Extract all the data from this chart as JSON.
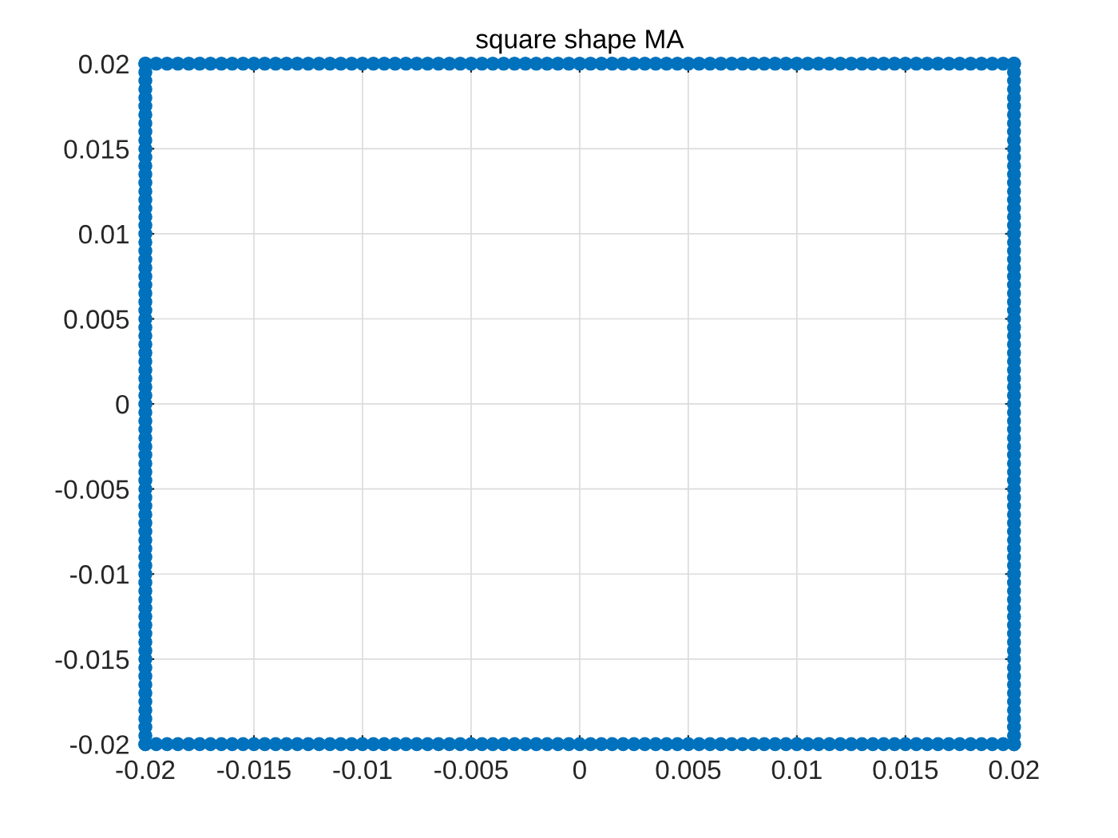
{
  "chart_data": {
    "type": "scatter",
    "title": "square shape MA",
    "marker": "circle",
    "grid": true,
    "xlim": [
      -0.02,
      0.02
    ],
    "ylim": [
      -0.02,
      0.02
    ],
    "xticks": [
      -0.02,
      -0.015,
      -0.01,
      -0.005,
      0,
      0.005,
      0.01,
      0.015,
      0.02
    ],
    "yticks": [
      -0.02,
      -0.015,
      -0.01,
      -0.005,
      0,
      0.005,
      0.01,
      0.015,
      0.02
    ],
    "series": [
      {
        "color": "#0072bd",
        "x": [
          -0.02,
          -0.0195,
          -0.019,
          -0.0185,
          -0.018,
          -0.0175,
          -0.017,
          -0.0165,
          -0.016,
          -0.0155,
          -0.015,
          -0.0145,
          -0.014,
          -0.0135,
          -0.013,
          -0.0125,
          -0.012,
          -0.0115,
          -0.011,
          -0.0105,
          -0.01,
          -0.0095,
          -0.009,
          -0.0085,
          -0.008,
          -0.0075,
          -0.007,
          -0.0065,
          -0.006,
          -0.0055,
          -0.005,
          -0.0045,
          -0.004,
          -0.0035,
          -0.003,
          -0.0025,
          -0.002,
          -0.0015,
          -0.001,
          -0.0005,
          0,
          0.0005,
          0.001,
          0.0015,
          0.002,
          0.0025,
          0.003,
          0.0035,
          0.004,
          0.0045,
          0.005,
          0.0055,
          0.006,
          0.0065,
          0.007,
          0.0075,
          0.008,
          0.0085,
          0.009,
          0.0095,
          0.01,
          0.0105,
          0.011,
          0.0115,
          0.012,
          0.0125,
          0.013,
          0.0135,
          0.014,
          0.0145,
          0.015,
          0.0155,
          0.016,
          0.0165,
          0.017,
          0.0175,
          0.018,
          0.0185,
          0.019,
          0.0195,
          0.02
        ],
        "values": [
          0.02,
          0.02,
          0.02,
          0.02,
          0.02,
          0.02,
          0.02,
          0.02,
          0.02,
          0.02,
          0.02,
          0.02,
          0.02,
          0.02,
          0.02,
          0.02,
          0.02,
          0.02,
          0.02,
          0.02,
          0.02,
          0.02,
          0.02,
          0.02,
          0.02,
          0.02,
          0.02,
          0.02,
          0.02,
          0.02,
          0.02,
          0.02,
          0.02,
          0.02,
          0.02,
          0.02,
          0.02,
          0.02,
          0.02,
          0.02,
          0.02,
          0.02,
          0.02,
          0.02,
          0.02,
          0.02,
          0.02,
          0.02,
          0.02,
          0.02,
          0.02,
          0.02,
          0.02,
          0.02,
          0.02,
          0.02,
          0.02,
          0.02,
          0.02,
          0.02,
          0.02,
          0.02,
          0.02,
          0.02,
          0.02,
          0.02,
          0.02,
          0.02,
          0.02,
          0.02,
          0.02,
          0.02,
          0.02,
          0.02,
          0.02,
          0.02,
          0.02,
          0.02,
          0.02,
          0.02,
          0.02
        ]
      },
      {
        "color": "#0072bd",
        "x": [
          -0.02,
          -0.0195,
          -0.019,
          -0.0185,
          -0.018,
          -0.0175,
          -0.017,
          -0.0165,
          -0.016,
          -0.0155,
          -0.015,
          -0.0145,
          -0.014,
          -0.0135,
          -0.013,
          -0.0125,
          -0.012,
          -0.0115,
          -0.011,
          -0.0105,
          -0.01,
          -0.0095,
          -0.009,
          -0.0085,
          -0.008,
          -0.0075,
          -0.007,
          -0.0065,
          -0.006,
          -0.0055,
          -0.005,
          -0.0045,
          -0.004,
          -0.0035,
          -0.003,
          -0.0025,
          -0.002,
          -0.0015,
          -0.001,
          -0.0005,
          0,
          0.0005,
          0.001,
          0.0015,
          0.002,
          0.0025,
          0.003,
          0.0035,
          0.004,
          0.0045,
          0.005,
          0.0055,
          0.006,
          0.0065,
          0.007,
          0.0075,
          0.008,
          0.0085,
          0.009,
          0.0095,
          0.01,
          0.0105,
          0.011,
          0.0115,
          0.012,
          0.0125,
          0.013,
          0.0135,
          0.014,
          0.0145,
          0.015,
          0.0155,
          0.016,
          0.0165,
          0.017,
          0.0175,
          0.018,
          0.0185,
          0.019,
          0.0195,
          0.02
        ],
        "values": [
          -0.02,
          -0.02,
          -0.02,
          -0.02,
          -0.02,
          -0.02,
          -0.02,
          -0.02,
          -0.02,
          -0.02,
          -0.02,
          -0.02,
          -0.02,
          -0.02,
          -0.02,
          -0.02,
          -0.02,
          -0.02,
          -0.02,
          -0.02,
          -0.02,
          -0.02,
          -0.02,
          -0.02,
          -0.02,
          -0.02,
          -0.02,
          -0.02,
          -0.02,
          -0.02,
          -0.02,
          -0.02,
          -0.02,
          -0.02,
          -0.02,
          -0.02,
          -0.02,
          -0.02,
          -0.02,
          -0.02,
          -0.02,
          -0.02,
          -0.02,
          -0.02,
          -0.02,
          -0.02,
          -0.02,
          -0.02,
          -0.02,
          -0.02,
          -0.02,
          -0.02,
          -0.02,
          -0.02,
          -0.02,
          -0.02,
          -0.02,
          -0.02,
          -0.02,
          -0.02,
          -0.02,
          -0.02,
          -0.02,
          -0.02,
          -0.02,
          -0.02,
          -0.02,
          -0.02,
          -0.02,
          -0.02,
          -0.02,
          -0.02,
          -0.02,
          -0.02,
          -0.02,
          -0.02,
          -0.02,
          -0.02,
          -0.02,
          -0.02,
          -0.02
        ]
      },
      {
        "color": "#0072bd",
        "x": [
          -0.02,
          -0.02,
          -0.02,
          -0.02,
          -0.02,
          -0.02,
          -0.02,
          -0.02,
          -0.02,
          -0.02,
          -0.02,
          -0.02,
          -0.02,
          -0.02,
          -0.02,
          -0.02,
          -0.02,
          -0.02,
          -0.02,
          -0.02,
          -0.02,
          -0.02,
          -0.02,
          -0.02,
          -0.02,
          -0.02,
          -0.02,
          -0.02,
          -0.02,
          -0.02,
          -0.02,
          -0.02,
          -0.02,
          -0.02,
          -0.02,
          -0.02,
          -0.02,
          -0.02,
          -0.02,
          -0.02,
          -0.02,
          -0.02,
          -0.02,
          -0.02,
          -0.02,
          -0.02,
          -0.02,
          -0.02,
          -0.02,
          -0.02,
          -0.02,
          -0.02,
          -0.02,
          -0.02,
          -0.02,
          -0.02,
          -0.02,
          -0.02,
          -0.02,
          -0.02,
          -0.02,
          -0.02,
          -0.02,
          -0.02,
          -0.02,
          -0.02,
          -0.02,
          -0.02,
          -0.02,
          -0.02,
          -0.02,
          -0.02,
          -0.02,
          -0.02,
          -0.02,
          -0.02,
          -0.02,
          -0.02,
          -0.02,
          -0.02,
          -0.02
        ],
        "values": [
          -0.02,
          -0.0195,
          -0.019,
          -0.0185,
          -0.018,
          -0.0175,
          -0.017,
          -0.0165,
          -0.016,
          -0.0155,
          -0.015,
          -0.0145,
          -0.014,
          -0.0135,
          -0.013,
          -0.0125,
          -0.012,
          -0.0115,
          -0.011,
          -0.0105,
          -0.01,
          -0.0095,
          -0.009,
          -0.0085,
          -0.008,
          -0.0075,
          -0.007,
          -0.0065,
          -0.006,
          -0.0055,
          -0.005,
          -0.0045,
          -0.004,
          -0.0035,
          -0.003,
          -0.0025,
          -0.002,
          -0.0015,
          -0.001,
          -0.0005,
          0,
          0.0005,
          0.001,
          0.0015,
          0.002,
          0.0025,
          0.003,
          0.0035,
          0.004,
          0.0045,
          0.005,
          0.0055,
          0.006,
          0.0065,
          0.007,
          0.0075,
          0.008,
          0.0085,
          0.009,
          0.0095,
          0.01,
          0.0105,
          0.011,
          0.0115,
          0.012,
          0.0125,
          0.013,
          0.0135,
          0.014,
          0.0145,
          0.015,
          0.0155,
          0.016,
          0.0165,
          0.017,
          0.0175,
          0.018,
          0.0185,
          0.019,
          0.0195,
          0.02
        ]
      },
      {
        "color": "#0072bd",
        "x": [
          0.02,
          0.02,
          0.02,
          0.02,
          0.02,
          0.02,
          0.02,
          0.02,
          0.02,
          0.02,
          0.02,
          0.02,
          0.02,
          0.02,
          0.02,
          0.02,
          0.02,
          0.02,
          0.02,
          0.02,
          0.02,
          0.02,
          0.02,
          0.02,
          0.02,
          0.02,
          0.02,
          0.02,
          0.02,
          0.02,
          0.02,
          0.02,
          0.02,
          0.02,
          0.02,
          0.02,
          0.02,
          0.02,
          0.02,
          0.02,
          0.02,
          0.02,
          0.02,
          0.02,
          0.02,
          0.02,
          0.02,
          0.02,
          0.02,
          0.02,
          0.02,
          0.02,
          0.02,
          0.02,
          0.02,
          0.02,
          0.02,
          0.02,
          0.02,
          0.02,
          0.02,
          0.02,
          0.02,
          0.02,
          0.02,
          0.02,
          0.02,
          0.02,
          0.02,
          0.02,
          0.02,
          0.02,
          0.02,
          0.02,
          0.02,
          0.02,
          0.02,
          0.02,
          0.02,
          0.02,
          0.02
        ],
        "values": [
          -0.02,
          -0.0195,
          -0.019,
          -0.0185,
          -0.018,
          -0.0175,
          -0.017,
          -0.0165,
          -0.016,
          -0.0155,
          -0.015,
          -0.0145,
          -0.014,
          -0.0135,
          -0.013,
          -0.0125,
          -0.012,
          -0.0115,
          -0.011,
          -0.0105,
          -0.01,
          -0.0095,
          -0.009,
          -0.0085,
          -0.008,
          -0.0075,
          -0.007,
          -0.0065,
          -0.006,
          -0.0055,
          -0.005,
          -0.0045,
          -0.004,
          -0.0035,
          -0.003,
          -0.0025,
          -0.002,
          -0.0015,
          -0.001,
          -0.0005,
          0,
          0.0005,
          0.001,
          0.0015,
          0.002,
          0.0025,
          0.003,
          0.0035,
          0.004,
          0.0045,
          0.005,
          0.0055,
          0.006,
          0.0065,
          0.007,
          0.0075,
          0.008,
          0.0085,
          0.009,
          0.0095,
          0.01,
          0.0105,
          0.011,
          0.0115,
          0.012,
          0.0125,
          0.013,
          0.0135,
          0.014,
          0.0145,
          0.015,
          0.0155,
          0.016,
          0.0165,
          0.017,
          0.0175,
          0.018,
          0.0185,
          0.019,
          0.0195,
          0.02
        ]
      }
    ]
  }
}
